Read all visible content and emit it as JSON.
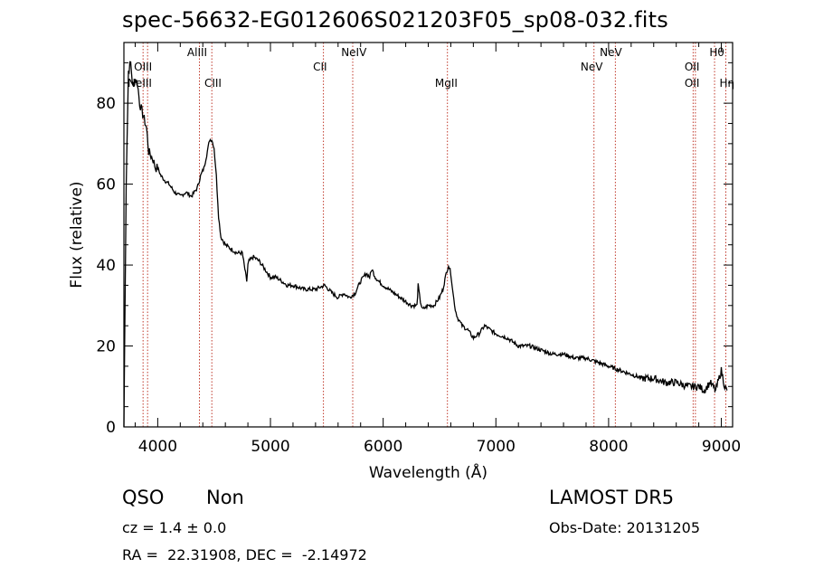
{
  "chart_data": {
    "type": "line",
    "title": "spec-56632-EG012606S021203F05_sp08-032.fits",
    "xlabel": "Wavelength (Å)",
    "ylabel": "Flux (relative)",
    "xlim": [
      3700,
      9100
    ],
    "ylim": [
      0,
      95
    ],
    "xticks": [
      4000,
      5000,
      6000,
      7000,
      8000,
      9000
    ],
    "yticks": [
      0,
      20,
      40,
      60,
      80
    ],
    "grid": false,
    "series": [
      {
        "x": [
          3700,
          3720,
          3740,
          3760,
          3780,
          3800,
          3820,
          3840,
          3860,
          3880,
          3900,
          3920,
          3940,
          3960,
          3980,
          4000,
          4030,
          4060,
          4100,
          4150,
          4200,
          4250,
          4300,
          4350,
          4380,
          4410,
          4440,
          4460,
          4480,
          4500,
          4520,
          4540,
          4560,
          4580,
          4600,
          4650,
          4700,
          4750,
          4790,
          4800,
          4810,
          4850,
          4900,
          4950,
          5000,
          5050,
          5100,
          5150,
          5200,
          5300,
          5400,
          5480,
          5550,
          5600,
          5650,
          5700,
          5750,
          5800,
          5850,
          5880,
          5900,
          5930,
          5960,
          6000,
          6050,
          6100,
          6150,
          6200,
          6250,
          6300,
          6310,
          6330,
          6350,
          6400,
          6450,
          6500,
          6530,
          6560,
          6580,
          6600,
          6620,
          6640,
          6660,
          6680,
          6700,
          6750,
          6800,
          6850,
          6900,
          6950,
          7000,
          7100,
          7200,
          7300,
          7400,
          7500,
          7600,
          7700,
          7800,
          7900,
          8000,
          8100,
          8200,
          8300,
          8400,
          8500,
          8600,
          8700,
          8800,
          8850,
          8900,
          8950,
          9000,
          9030,
          9050
        ],
        "values": [
          0,
          60,
          88,
          90,
          84,
          86,
          85,
          80,
          78,
          76,
          74,
          68,
          67,
          66,
          64,
          64,
          62,
          61,
          60,
          58,
          57,
          58,
          57,
          59,
          62,
          64,
          68,
          71,
          71,
          69,
          62,
          52,
          47,
          46,
          45,
          44,
          43,
          43,
          36,
          40,
          41,
          42,
          41,
          39,
          37,
          37,
          36,
          35,
          35,
          34,
          34,
          35,
          33,
          32,
          33,
          32,
          33,
          36,
          38,
          37,
          39,
          37,
          36,
          35,
          34,
          33,
          32,
          31,
          30,
          30,
          35,
          31,
          29,
          30,
          30,
          32,
          34,
          38,
          40,
          38,
          33,
          29,
          27,
          26,
          25,
          24,
          22,
          23,
          25,
          24,
          23,
          22,
          20,
          20,
          19,
          18,
          18,
          17,
          17,
          16,
          15,
          14,
          13,
          12,
          12,
          11,
          11,
          10,
          10,
          9,
          11,
          9,
          14,
          10,
          9
        ]
      }
    ],
    "lines": [
      {
        "name": "OIII",
        "x": 3870
      },
      {
        "name": "NeIII",
        "x": 3910
      },
      {
        "name": "AlIII",
        "x": 4370
      },
      {
        "name": "CIII",
        "x": 4480
      },
      {
        "name": "CII",
        "x": 5470
      },
      {
        "name": "NeIV",
        "x": 5730
      },
      {
        "name": "MgII",
        "x": 6570
      },
      {
        "name": "NeV",
        "x": 7870
      },
      {
        "name": "NeV",
        "x": 8060
      },
      {
        "name": "OII",
        "x": 8750
      },
      {
        "name": "OII",
        "x": 8770
      },
      {
        "name": "Hθ",
        "x": 8940
      },
      {
        "name": "Hη",
        "x": 9040
      }
    ],
    "line_labels": [
      {
        "text": "AlIII",
        "x": 4350,
        "row": "top"
      },
      {
        "text": "NeIV",
        "x": 5740,
        "row": "top"
      },
      {
        "text": "NeV",
        "x": 8020,
        "row": "top"
      },
      {
        "text": "Hθ",
        "x": 8960,
        "row": "top"
      },
      {
        "text": "OIII",
        "x": 3870,
        "row": "mid"
      },
      {
        "text": "CII",
        "x": 5440,
        "row": "mid"
      },
      {
        "text": "NeV",
        "x": 7850,
        "row": "mid"
      },
      {
        "text": "OII",
        "x": 8740,
        "row": "mid"
      },
      {
        "text": "NeIII",
        "x": 3840,
        "row": "low"
      },
      {
        "text": "CIII",
        "x": 4490,
        "row": "low"
      },
      {
        "text": "MgII",
        "x": 6560,
        "row": "low"
      },
      {
        "text": "OII",
        "x": 8740,
        "row": "low"
      },
      {
        "text": "Hη",
        "x": 9050,
        "row": "low"
      }
    ]
  },
  "colors": {
    "spectrum": "#000000",
    "emission_line": "#c0392b",
    "axes": "#000000",
    "background": "#ffffff"
  },
  "info": {
    "class": "QSO",
    "subclass": "Non",
    "cz": "cz = 1.4 ± 0.0",
    "coords": "RA =  22.31908, DEC =  -2.14972",
    "survey": "LAMOST DR5",
    "obs_date": "Obs-Date: 20131205"
  }
}
